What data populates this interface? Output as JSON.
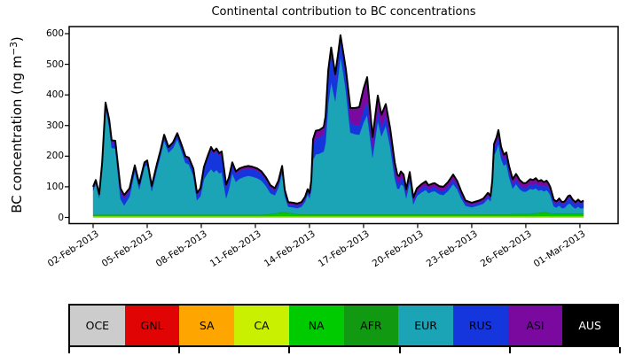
{
  "title": "Continental contribution to BC concentrations",
  "y_axis": {
    "label_pre": "BC concentration (ng m",
    "label_sup": "−3",
    "label_post": ")",
    "ticks": [
      0,
      100,
      200,
      300,
      400,
      500,
      600
    ]
  },
  "x_axis": {
    "tick_days": [
      0,
      3,
      6,
      9,
      12,
      15,
      18,
      21,
      24,
      27
    ],
    "tick_labels": [
      "02-Feb-2013",
      "05-Feb-2013",
      "08-Feb-2013",
      "11-Feb-2013",
      "14-Feb-2013",
      "17-Feb-2013",
      "20-Feb-2013",
      "23-Feb-2013",
      "26-Feb-2013",
      "01-Mar-2013"
    ]
  },
  "legend": {
    "items": [
      {
        "label": "OCE",
        "color": "#cccccc",
        "text_color": "#000000"
      },
      {
        "label": "GNL",
        "color": "#e00404",
        "text_color": "#000000"
      },
      {
        "label": "SA",
        "color": "#ffa500",
        "text_color": "#000000"
      },
      {
        "label": "CA",
        "color": "#c8f000",
        "text_color": "#000000"
      },
      {
        "label": "NA",
        "color": "#00cb00",
        "text_color": "#000000"
      },
      {
        "label": "AFR",
        "color": "#119a11",
        "text_color": "#000000"
      },
      {
        "label": "EUR",
        "color": "#1ba3b6",
        "text_color": "#000000"
      },
      {
        "label": "RUS",
        "color": "#1535dd",
        "text_color": "#000000"
      },
      {
        "label": "ASI",
        "color": "#7a0a9f",
        "text_color": "#000000"
      },
      {
        "label": "AUS",
        "color": "#000000",
        "text_color": "#ffffff"
      }
    ]
  },
  "chart_data": {
    "type": "area",
    "stacked": true,
    "title": "Continental contribution to BC concentrations",
    "ylabel": "BC concentration (ng m⁻³)",
    "ylim": [
      0,
      623
    ],
    "grid": false,
    "x_unit": "days since 02-Feb-2013 00:00",
    "x_range_days": [
      0,
      27.2
    ],
    "outline_color": "#000000",
    "stack_order": [
      "OCE",
      "GNL",
      "SA",
      "CA",
      "NA",
      "AFR",
      "EUR",
      "RUS",
      "ASI",
      "AUS"
    ],
    "colors": {
      "OCE": "#cccccc",
      "GNL": "#e00404",
      "SA": "#ffa500",
      "CA": "#c8f000",
      "NA": "#00cb00",
      "AFR": "#119a11",
      "EUR": "#1ba3b6",
      "RUS": "#1535dd",
      "ASI": "#7a0a9f",
      "AUS": "#000000"
    },
    "constant_series": {
      "OCE": 0.5,
      "GNL": 0.5,
      "SA": 1,
      "CA": 1.5,
      "AFR": 2,
      "AUS": 0
    },
    "columns": [
      "day",
      "NA",
      "EUR",
      "RUS",
      "ASI"
    ],
    "points": [
      [
        0,
        4,
        78.5,
        8,
        4
      ],
      [
        0.15,
        4,
        100.5,
        8,
        4
      ],
      [
        0.34,
        4,
        54.5,
        8,
        4
      ],
      [
        0.5,
        4,
        155.5,
        10,
        5
      ],
      [
        0.69,
        4,
        347.5,
        12,
        6
      ],
      [
        0.89,
        4,
        286.5,
        16,
        8
      ],
      [
        1.03,
        4,
        217.5,
        16,
        9
      ],
      [
        1.23,
        4,
        215.5,
        16,
        9
      ],
      [
        1.52,
        4,
        50.5,
        24,
        11
      ],
      [
        1.72,
        4,
        29.5,
        22,
        12
      ],
      [
        2.02,
        4,
        58.5,
        18,
        9
      ],
      [
        2.31,
        4,
        140.5,
        13,
        7
      ],
      [
        2.56,
        4,
        82.5,
        12,
        6
      ],
      [
        2.85,
        4,
        155.5,
        10,
        5
      ],
      [
        3,
        4,
        161.5,
        10,
        5
      ],
      [
        3.25,
        4,
        75.5,
        12,
        6
      ],
      [
        3.54,
        4,
        147.5,
        12,
        6
      ],
      [
        3.74,
        4,
        191.5,
        12,
        6
      ],
      [
        3.94,
        4,
        241.5,
        13,
        6
      ],
      [
        4.18,
        4,
        201.5,
        13,
        6
      ],
      [
        4.43,
        4,
        216.5,
        13,
        6
      ],
      [
        4.67,
        4,
        246.5,
        13,
        6
      ],
      [
        4.92,
        4,
        205.5,
        14,
        6
      ],
      [
        5.12,
        4,
        168.5,
        15,
        7
      ],
      [
        5.31,
        4,
        163.5,
        15,
        7
      ],
      [
        5.56,
        4,
        126.5,
        16,
        8
      ],
      [
        5.76,
        4,
        46.5,
        16,
        8
      ],
      [
        5.95,
        4,
        59.5,
        18,
        8
      ],
      [
        6.15,
        4,
        115.5,
        32,
        8
      ],
      [
        6.35,
        4,
        134.5,
        48,
        8
      ],
      [
        6.54,
        4,
        148.5,
        64,
        8
      ],
      [
        6.69,
        4,
        137.5,
        60,
        8
      ],
      [
        6.84,
        4,
        145.5,
        62,
        8
      ],
      [
        6.99,
        4,
        134.5,
        58,
        8
      ],
      [
        7.13,
        4,
        137.5,
        60,
        8
      ],
      [
        7.38,
        4,
        53.5,
        36,
        8
      ],
      [
        7.53,
        4,
        82.5,
        30,
        8
      ],
      [
        7.72,
        4,
        134.5,
        28,
        8
      ],
      [
        7.92,
        4,
        106.5,
        26,
        8
      ],
      [
        8.12,
        4,
        116.5,
        26,
        8
      ],
      [
        8.36,
        4,
        122.5,
        25,
        8
      ],
      [
        8.61,
        4,
        126.5,
        24,
        8
      ],
      [
        8.85,
        4,
        123.5,
        24,
        8
      ],
      [
        9.1,
        4,
        118.5,
        24,
        8
      ],
      [
        9.34,
        4,
        110.5,
        22,
        8
      ],
      [
        9.59,
        5,
        91.5,
        20,
        8
      ],
      [
        9.84,
        6,
        67.5,
        18,
        8
      ],
      [
        10.08,
        8,
        58.5,
        15,
        8
      ],
      [
        10.28,
        10,
        82.5,
        14,
        8
      ],
      [
        10.48,
        12,
        129.5,
        13,
        8
      ],
      [
        10.63,
        12,
        52.5,
        12,
        8
      ],
      [
        10.82,
        10,
        19.5,
        8,
        7
      ],
      [
        11.07,
        8,
        19.5,
        8,
        7
      ],
      [
        11.31,
        6,
        18.5,
        8,
        7
      ],
      [
        11.56,
        5,
        24.5,
        8,
        7
      ],
      [
        11.76,
        5,
        41.5,
        9,
        7
      ],
      [
        11.9,
        5,
        65.5,
        9,
        7
      ],
      [
        12,
        5,
        51.5,
        10,
        8
      ],
      [
        12.1,
        5,
        79.5,
        18,
        12
      ],
      [
        12.2,
        5,
        177.5,
        45,
        22
      ],
      [
        12.35,
        5,
        195.5,
        52,
        25
      ],
      [
        12.54,
        5,
        197.5,
        52,
        25
      ],
      [
        12.79,
        5,
        204.5,
        55,
        25
      ],
      [
        12.89,
        5,
        233.5,
        62,
        24
      ],
      [
        13.04,
        5,
        359.5,
        90,
        20
      ],
      [
        13.2,
        5,
        431.5,
        95,
        18
      ],
      [
        13.43,
        5,
        369.5,
        70,
        18
      ],
      [
        13.6,
        5,
        453.5,
        60,
        16
      ],
      [
        13.72,
        5,
        514.5,
        55,
        15
      ],
      [
        13.87,
        5,
        461.5,
        52,
        16
      ],
      [
        14.02,
        5,
        403.5,
        48,
        22
      ],
      [
        14.27,
        5,
        266.5,
        32,
        48
      ],
      [
        14.51,
        5,
        261.5,
        30,
        55
      ],
      [
        14.76,
        5,
        259.5,
        32,
        58
      ],
      [
        15,
        5,
        299.5,
        40,
        70
      ],
      [
        15.2,
        5,
        324.5,
        45,
        78
      ],
      [
        15.5,
        5,
        185.5,
        28,
        38
      ],
      [
        15.79,
        5,
        304.5,
        35,
        48
      ],
      [
        15.99,
        5,
        254.5,
        30,
        40
      ],
      [
        16.23,
        5,
        289.5,
        32,
        38
      ],
      [
        16.48,
        5,
        219.5,
        28,
        32
      ],
      [
        16.73,
        5,
        118.5,
        25,
        26
      ],
      [
        16.87,
        5,
        83.5,
        22,
        24
      ],
      [
        16.97,
        5,
        82.5,
        20,
        22
      ],
      [
        17.07,
        5,
        97.5,
        20,
        22
      ],
      [
        17.22,
        5,
        91.5,
        18,
        20
      ],
      [
        17.37,
        5,
        52.5,
        15,
        14
      ],
      [
        17.56,
        5,
        106.5,
        16,
        15
      ],
      [
        17.76,
        5,
        32.5,
        12,
        10
      ],
      [
        17.96,
        5,
        59.5,
        13,
        12
      ],
      [
        18.2,
        5,
        70.5,
        14,
        13
      ],
      [
        18.45,
        5,
        79.5,
        14,
        14
      ],
      [
        18.6,
        5,
        68.5,
        13,
        13
      ],
      [
        18.8,
        5,
        73.5,
        13,
        13
      ],
      [
        18.94,
        5,
        75.5,
        13,
        13
      ],
      [
        19.2,
        5,
        65.5,
        13,
        13
      ],
      [
        19.43,
        5,
        62.5,
        13,
        14
      ],
      [
        19.68,
        5,
        75.5,
        14,
        15
      ],
      [
        19.97,
        5,
        98.5,
        15,
        16
      ],
      [
        20.2,
        5,
        80.5,
        13,
        14
      ],
      [
        20.42,
        5,
        51.5,
        11,
        12
      ],
      [
        20.66,
        5,
        27.5,
        9,
        8
      ],
      [
        21,
        5,
        22.5,
        8,
        7
      ],
      [
        21.4,
        5,
        29.5,
        8,
        7
      ],
      [
        21.65,
        5,
        34.5,
        9,
        8
      ],
      [
        21.9,
        5,
        50.5,
        10,
        9
      ],
      [
        22.04,
        5,
        42.5,
        9,
        8
      ],
      [
        22.14,
        5,
        87.5,
        12,
        10
      ],
      [
        22.24,
        5,
        191.5,
        22,
        16
      ],
      [
        22.38,
        5,
        210.5,
        24,
        17
      ],
      [
        22.48,
        5,
        230.5,
        26,
        18
      ],
      [
        22.63,
        5,
        180.5,
        22,
        17
      ],
      [
        22.78,
        5,
        158.5,
        20,
        16
      ],
      [
        22.92,
        5,
        164.5,
        20,
        17
      ],
      [
        23.07,
        5,
        121.5,
        18,
        18
      ],
      [
        23.27,
        6,
        82.5,
        15,
        16
      ],
      [
        23.46,
        6,
        97.5,
        16,
        17
      ],
      [
        23.66,
        6,
        80.5,
        14,
        16
      ],
      [
        23.86,
        6,
        72.5,
        13,
        15
      ],
      [
        24,
        6,
        72.5,
        13,
        15
      ],
      [
        24.25,
        7,
        80.5,
        15,
        17
      ],
      [
        24.4,
        8,
        77.5,
        15,
        16
      ],
      [
        24.55,
        9,
        80.5,
        16,
        17
      ],
      [
        24.7,
        10,
        71.5,
        15,
        16
      ],
      [
        24.85,
        11,
        73.5,
        16,
        16
      ],
      [
        25,
        12,
        67.5,
        15,
        15
      ],
      [
        25.15,
        11,
        72.5,
        16,
        15
      ],
      [
        25.25,
        10,
        67.5,
        15,
        14
      ],
      [
        25.35,
        9,
        58.5,
        15,
        12
      ],
      [
        25.55,
        8,
        22.5,
        14,
        8
      ],
      [
        25.7,
        8,
        18.5,
        13,
        7
      ],
      [
        25.85,
        8,
        25.5,
        15,
        8
      ],
      [
        26,
        8,
        16.5,
        13,
        7
      ],
      [
        26.15,
        8,
        17.5,
        14,
        7
      ],
      [
        26.35,
        8,
        30.5,
        18,
        8
      ],
      [
        26.45,
        8,
        31.5,
        19,
        8
      ],
      [
        26.6,
        8,
        21.5,
        16,
        7
      ],
      [
        26.75,
        8,
        15.5,
        14,
        7
      ],
      [
        26.9,
        8,
        21.5,
        16,
        7
      ],
      [
        27.05,
        8,
        15.5,
        15,
        6
      ],
      [
        27.2,
        8,
        17.5,
        17,
        7
      ]
    ]
  }
}
